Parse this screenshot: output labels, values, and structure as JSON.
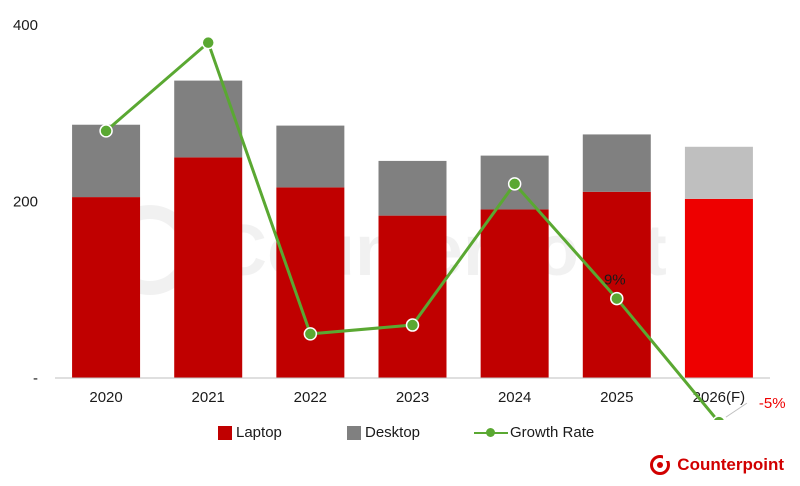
{
  "chart_data": {
    "type": "bar",
    "stacked": true,
    "categories": [
      "2020",
      "2021",
      "2022",
      "2023",
      "2024",
      "2025",
      "2026(F)"
    ],
    "series": [
      {
        "name": "Laptop",
        "values": [
          205,
          250,
          216,
          184,
          191,
          211,
          203
        ],
        "color": "#c00000",
        "forecast_color": "#ee0000"
      },
      {
        "name": "Desktop",
        "values": [
          82,
          87,
          70,
          62,
          61,
          65,
          59
        ],
        "color": "#808080",
        "forecast_color": "#bfbfbf"
      },
      {
        "name": "Growth Rate",
        "type": "line",
        "values": [
          28,
          38,
          5,
          6,
          22,
          9,
          -5
        ],
        "color": "#5aa832"
      }
    ],
    "y_ticks": [
      "-",
      "200",
      "400"
    ],
    "ylim": [
      0,
      400
    ],
    "line_ylim": [
      0,
      40
    ],
    "annotations": [
      {
        "category": "2025",
        "text": "9%",
        "color": "#1a1a1a"
      },
      {
        "category": "2026(F)",
        "text": "-5%",
        "color": "#ee0000"
      }
    ],
    "legend_position": "bottom",
    "grid": false
  },
  "legend": {
    "laptop_label": "Laptop",
    "desktop_label": "Desktop",
    "growth_label": "Growth Rate"
  },
  "brand": {
    "name": "Counterpoint",
    "icon": "counterpoint-logo-icon"
  }
}
